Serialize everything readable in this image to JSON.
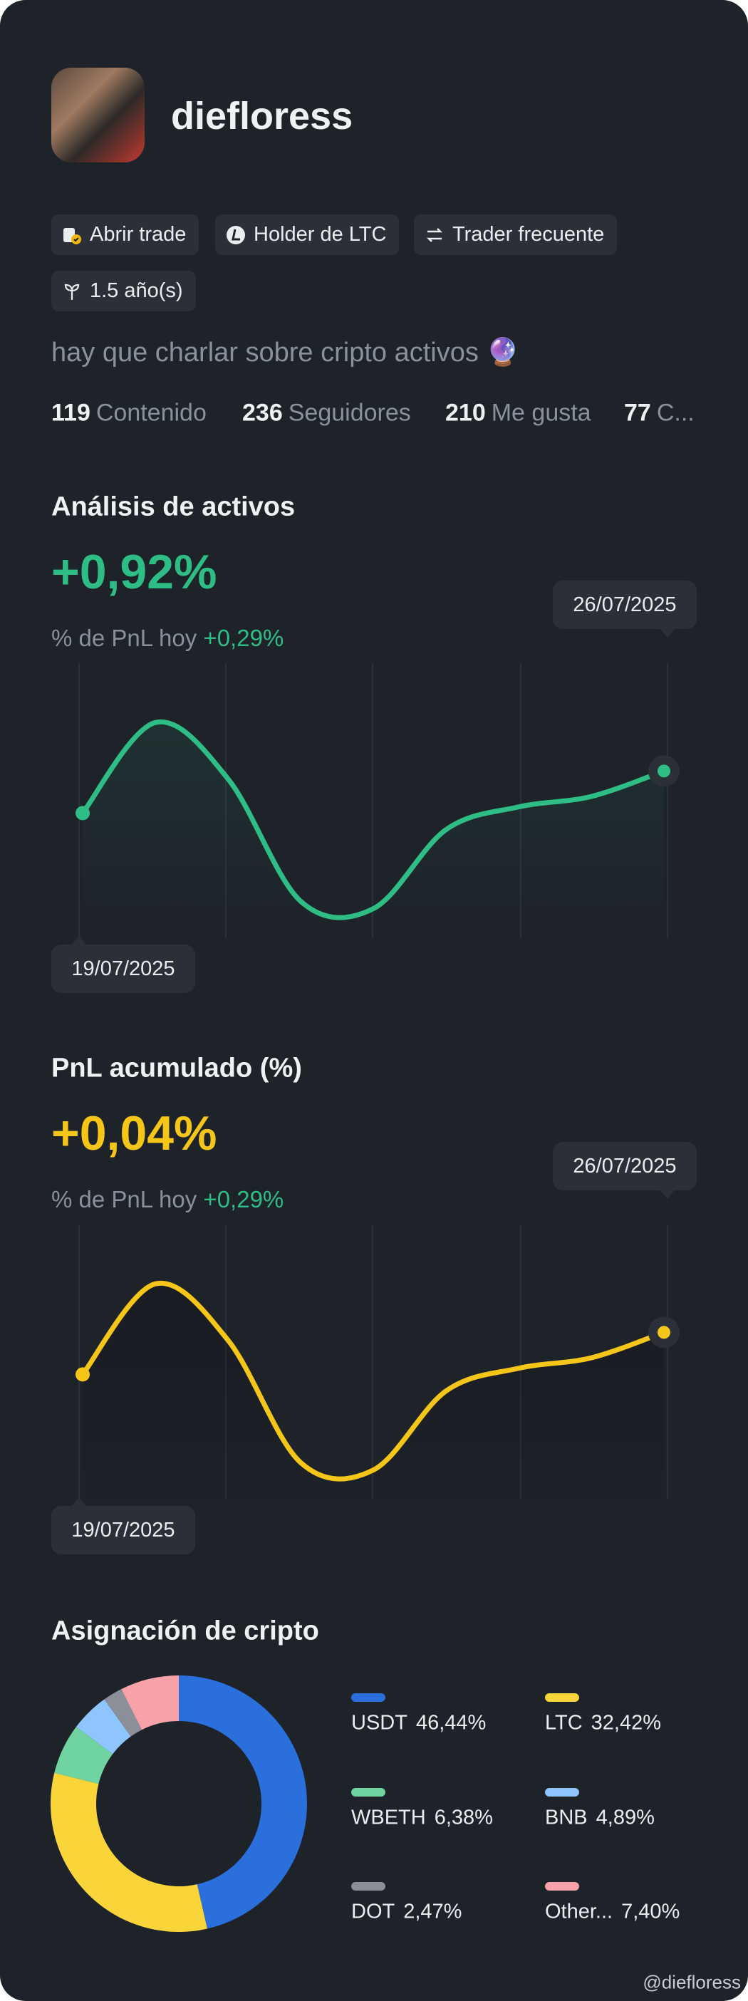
{
  "profile": {
    "username": "diefloress",
    "badges": [
      "Abrir trade",
      "Holder de LTC",
      "Trader frecuente",
      "1.5 año(s)"
    ],
    "bio": "hay que charlar sobre cripto activos 🔮",
    "stats": [
      {
        "value": 119,
        "label": "Contenido"
      },
      {
        "value": 236,
        "label": "Seguidores"
      },
      {
        "value": 210,
        "label": "Me gusta"
      },
      {
        "value": 77,
        "label": "C..."
      }
    ]
  },
  "chart_data": [
    {
      "type": "line",
      "title": "Análisis de activos",
      "headline": "+0,92%",
      "subtitle_label": "% de PnL hoy",
      "subtitle_value": "+0,29%",
      "start_label": "19/07/2025",
      "end_label": "26/07/2025",
      "color": "#2ebd85",
      "ylim": [
        0,
        100
      ],
      "values": [
        46.7,
        80.5,
        59.5,
        13.8,
        11,
        40.5,
        49,
        52.9,
        62.4
      ]
    },
    {
      "type": "line",
      "title": "PnL acumulado (%)",
      "headline": "+0,04%",
      "subtitle_label": "% de PnL hoy",
      "subtitle_value": "+0,29%",
      "start_label": "19/07/2025",
      "end_label": "26/07/2025",
      "color": "#f5c518",
      "ylim": [
        0,
        100
      ],
      "values": [
        46.7,
        80.5,
        59.5,
        13.8,
        11,
        40.5,
        49,
        52.9,
        62.4
      ]
    },
    {
      "type": "pie",
      "title": "Asignación de cripto",
      "donut": true,
      "categories": [
        "USDT",
        "LTC",
        "WBETH",
        "BNB",
        "DOT",
        "Other..."
      ],
      "values": [
        46.44,
        32.42,
        6.38,
        4.89,
        2.47,
        7.4
      ],
      "value_labels": [
        "46,44%",
        "32,42%",
        "6,38%",
        "4,89%",
        "2,47%",
        "7,40%"
      ],
      "colors": [
        "#2a6fdb",
        "#fad53a",
        "#6fd3a2",
        "#8ec5ff",
        "#8a8f98",
        "#f7a1a8"
      ]
    }
  ],
  "watermark": "@diefloress"
}
